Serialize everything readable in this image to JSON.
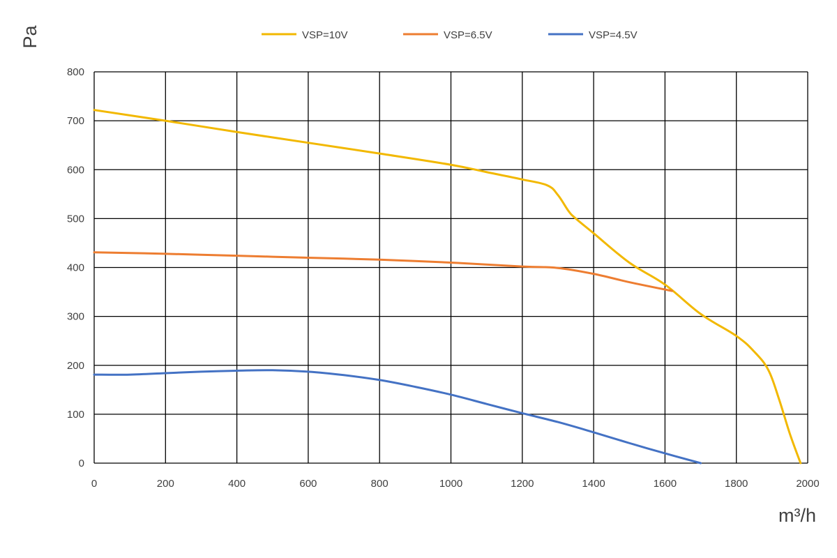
{
  "chart_data": {
    "type": "line",
    "xlabel": "m³/h",
    "ylabel": "Pa",
    "xlim": [
      0,
      2000
    ],
    "ylim": [
      0,
      800
    ],
    "x_ticks": [
      "0",
      "200",
      "400",
      "600",
      "800",
      "1000",
      "1200",
      "1400",
      "1600",
      "1800",
      "2000"
    ],
    "y_ticks": [
      "0",
      "100",
      "200",
      "300",
      "400",
      "500",
      "600",
      "700",
      "800"
    ],
    "grid": true,
    "legend_position": "top",
    "series": [
      {
        "name": "VSP=10V",
        "color": "#F2B800",
        "points": [
          [
            0,
            722
          ],
          [
            200,
            700
          ],
          [
            400,
            677
          ],
          [
            600,
            655
          ],
          [
            800,
            633
          ],
          [
            1000,
            610
          ],
          [
            1100,
            595
          ],
          [
            1200,
            580
          ],
          [
            1270,
            568
          ],
          [
            1300,
            548
          ],
          [
            1330,
            515
          ],
          [
            1350,
            500
          ],
          [
            1400,
            470
          ],
          [
            1500,
            410
          ],
          [
            1600,
            365
          ],
          [
            1700,
            305
          ],
          [
            1800,
            260
          ],
          [
            1850,
            228
          ],
          [
            1890,
            190
          ],
          [
            1920,
            130
          ],
          [
            1950,
            60
          ],
          [
            1980,
            0
          ]
        ]
      },
      {
        "name": "VSP=6.5V",
        "color": "#ED7D31",
        "points": [
          [
            0,
            431
          ],
          [
            200,
            428
          ],
          [
            400,
            424
          ],
          [
            600,
            420
          ],
          [
            800,
            416
          ],
          [
            1000,
            410
          ],
          [
            1200,
            402
          ],
          [
            1300,
            399
          ],
          [
            1400,
            387
          ],
          [
            1500,
            370
          ],
          [
            1620,
            352
          ]
        ]
      },
      {
        "name": "VSP=4.5V",
        "color": "#4472C4",
        "points": [
          [
            0,
            181
          ],
          [
            100,
            181
          ],
          [
            200,
            184
          ],
          [
            300,
            187
          ],
          [
            400,
            189
          ],
          [
            500,
            190
          ],
          [
            600,
            187
          ],
          [
            700,
            180
          ],
          [
            800,
            170
          ],
          [
            900,
            156
          ],
          [
            1000,
            140
          ],
          [
            1100,
            121
          ],
          [
            1200,
            102
          ],
          [
            1300,
            84
          ],
          [
            1400,
            63
          ],
          [
            1500,
            41
          ],
          [
            1600,
            20
          ],
          [
            1700,
            0
          ]
        ]
      }
    ]
  }
}
